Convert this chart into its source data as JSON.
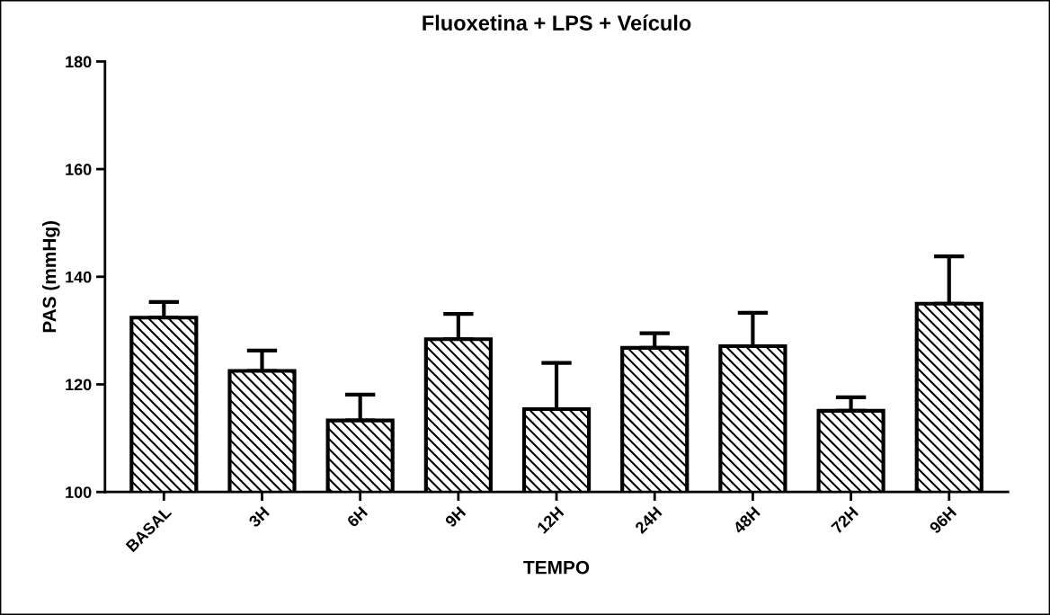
{
  "chart_data": {
    "type": "bar",
    "title": "Fluoxetina + LPS + Veículo",
    "xlabel": "TEMPO",
    "ylabel": "PAS (mmHg)",
    "categories": [
      "BASAL",
      "3H",
      "6H",
      "9H",
      "12H",
      "24H",
      "48H",
      "72H",
      "96H"
    ],
    "values": [
      132.4,
      122.5,
      113.3,
      128.4,
      115.4,
      126.8,
      127.1,
      115.1,
      135.0
    ],
    "errors": [
      [
        132.4,
        135.3
      ],
      [
        122.5,
        126.3
      ],
      [
        113.3,
        118.1
      ],
      [
        128.4,
        133.1
      ],
      [
        115.4,
        124.0
      ],
      [
        126.8,
        129.5
      ],
      [
        127.1,
        133.3
      ],
      [
        115.1,
        117.6
      ],
      [
        135.0,
        143.8
      ]
    ],
    "color": "#000000",
    "ylim": [
      100,
      180
    ],
    "yticks": [
      100,
      120,
      140,
      160,
      180
    ],
    "grid": false,
    "legend": false
  }
}
